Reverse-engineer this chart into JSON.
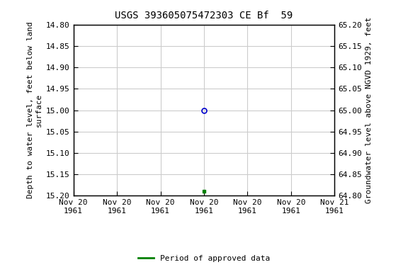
{
  "title": "USGS 393605075472303 CE Bf  59",
  "left_ylabel": "Depth to water level, feet below land\nsurface",
  "right_ylabel": "Groundwater level above NGVD 1929, feet",
  "ylim_left_top": 14.8,
  "ylim_left_bottom": 15.2,
  "ylim_right_top": 65.2,
  "ylim_right_bottom": 64.8,
  "xlim": [
    0,
    6
  ],
  "xtick_positions": [
    0,
    1,
    2,
    3,
    4,
    5,
    6
  ],
  "xtick_labels": [
    "Nov 20\n1961",
    "Nov 20\n1961",
    "Nov 20\n1961",
    "Nov 20\n1961",
    "Nov 20\n1961",
    "Nov 20\n1961",
    "Nov 21\n1961"
  ],
  "left_ticks": [
    14.8,
    14.85,
    14.9,
    14.95,
    15.0,
    15.05,
    15.1,
    15.15,
    15.2
  ],
  "right_ticks": [
    65.2,
    65.15,
    65.1,
    65.05,
    65.0,
    64.95,
    64.9,
    64.85,
    64.8
  ],
  "blue_point_x": 3,
  "blue_point_y": 15.0,
  "green_point_x": 3,
  "green_point_y": 15.19,
  "grid_color": "#cccccc",
  "background_color": "#ffffff",
  "title_fontsize": 10,
  "axis_label_fontsize": 8,
  "tick_fontsize": 8,
  "legend_label": "Period of approved data",
  "legend_color": "#008000",
  "blue_color": "#0000cc",
  "font_family": "monospace"
}
